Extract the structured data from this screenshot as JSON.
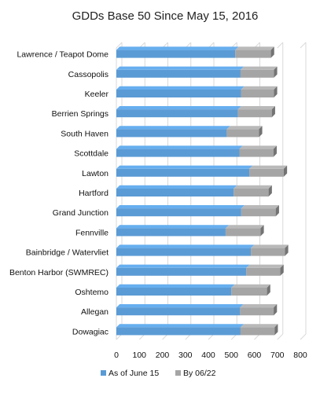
{
  "chart_data": {
    "type": "bar",
    "orientation": "horizontal",
    "stacked": true,
    "style": "3d",
    "title": "GDDs Base 50 Since May 15, 2016",
    "xlabel": "",
    "ylabel": "",
    "xlim": [
      0,
      800
    ],
    "xticks": [
      0,
      100,
      200,
      300,
      400,
      500,
      600,
      700,
      800
    ],
    "grid": "vertical",
    "legend_position": "bottom",
    "categories": [
      "Lawrence / Teapot Dome",
      "Cassopolis",
      "Keeler",
      "Berrien Springs",
      "South Haven",
      "Scottdale",
      "Lawton",
      "Hartford",
      "Grand Junction",
      "Fennville",
      "Bainbridge / Watervliet",
      "Benton Harbor (SWMREC)",
      "Oshtemo",
      "Allegan",
      "Dowagiac"
    ],
    "series": [
      {
        "name": "As of June 15",
        "color": "#5b9bd5",
        "values": [
          517,
          540,
          542,
          528,
          480,
          535,
          578,
          510,
          543,
          475,
          585,
          565,
          500,
          538,
          540
        ]
      },
      {
        "name": "By 06/22",
        "color": "#a5a5a5",
        "values": [
          155,
          145,
          143,
          148,
          140,
          148,
          150,
          152,
          150,
          152,
          148,
          148,
          155,
          146,
          148
        ]
      }
    ]
  }
}
